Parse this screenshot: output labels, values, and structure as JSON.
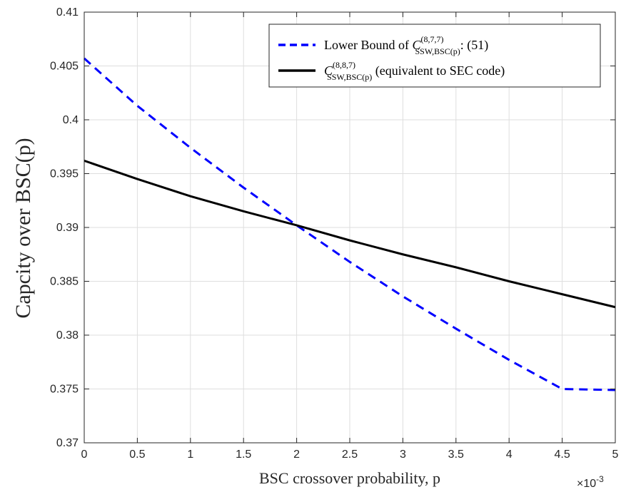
{
  "chart_data": {
    "type": "line",
    "xlabel": "BSC crossover probability, p",
    "ylabel": "Capcity over BSC(p)",
    "x_exponent_label": "×10",
    "x_exponent_power": "-3",
    "x_scale_factor": 0.001,
    "xlim": [
      0,
      5
    ],
    "ylim": [
      0.37,
      0.41
    ],
    "x_ticks": [
      0,
      0.5,
      1,
      1.5,
      2,
      2.5,
      3,
      3.5,
      4,
      4.5,
      5
    ],
    "x_tick_labels": [
      "0",
      "0.5",
      "1",
      "1.5",
      "2",
      "2.5",
      "3",
      "3.5",
      "4",
      "4.5",
      "5"
    ],
    "y_ticks": [
      0.37,
      0.375,
      0.38,
      0.385,
      0.39,
      0.395,
      0.4,
      0.405,
      0.41
    ],
    "y_tick_labels": [
      "0.37",
      "0.375",
      "0.38",
      "0.385",
      "0.39",
      "0.395",
      "0.4",
      "0.405",
      "0.41"
    ],
    "grid": true,
    "legend_position": "top-right",
    "series": [
      {
        "name": "Lower Bound of C_SSW,BSC(p)^(8,7,7): (51)",
        "legend_prefix": "Lower Bound of ",
        "legend_var": "C",
        "legend_sup": "(8,7,7)",
        "legend_sub": "SSW,BSC(p)",
        "legend_suffix": ": (51)",
        "color": "#0000ff",
        "style": "dashed",
        "x": [
          0,
          0.5,
          1,
          1.5,
          2,
          2.5,
          3,
          3.5,
          4,
          4.5,
          5
        ],
        "y": [
          0.4057,
          0.4013,
          0.3974,
          0.3937,
          0.3902,
          0.3868,
          0.3836,
          0.3806,
          0.3777,
          0.375,
          0.3749
        ]
      },
      {
        "name": "C_SSW,BSC(p)^(8,8,7) (equivalent to SEC code)",
        "legend_prefix": "",
        "legend_var": "C",
        "legend_sup": "(8,8,7)",
        "legend_sub": "SSW,BSC(p)",
        "legend_suffix": " (equivalent to SEC code)",
        "color": "#000000",
        "style": "solid",
        "x": [
          0,
          0.5,
          1,
          1.5,
          2,
          2.5,
          3,
          3.5,
          4,
          4.5,
          5
        ],
        "y": [
          0.3962,
          0.3945,
          0.3929,
          0.3915,
          0.3902,
          0.3888,
          0.3875,
          0.3863,
          0.385,
          0.3838,
          0.3826
        ]
      }
    ]
  }
}
